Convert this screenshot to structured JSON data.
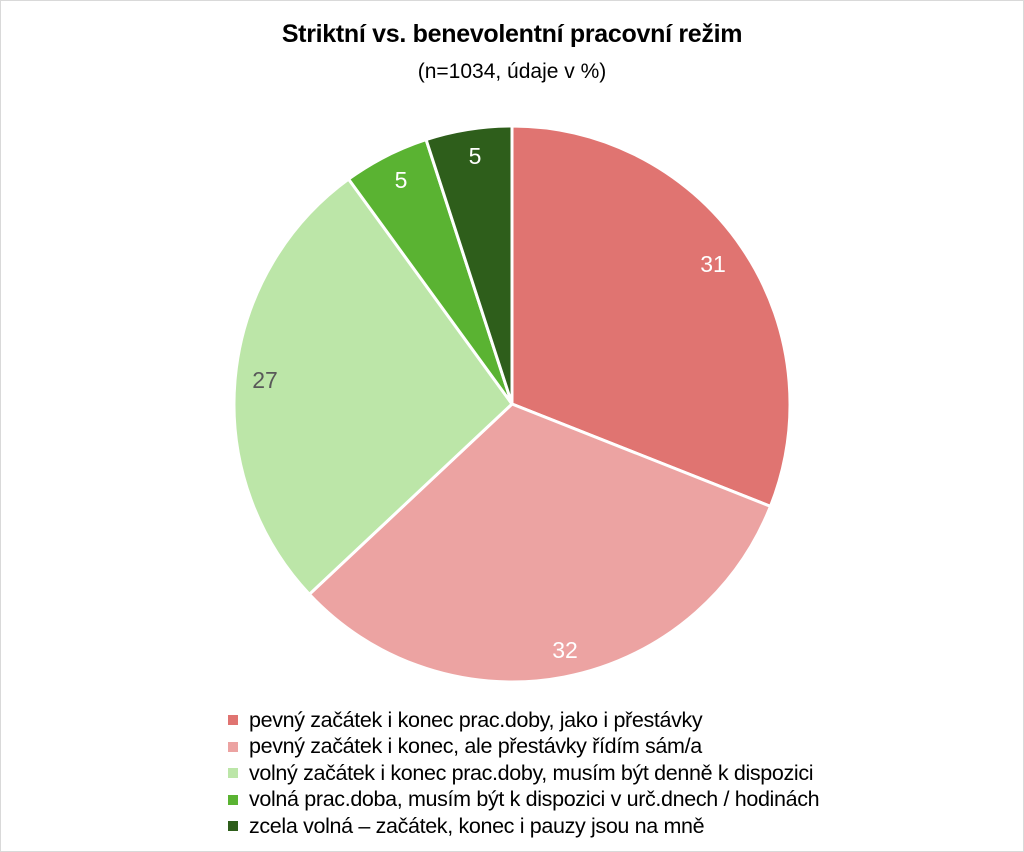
{
  "chart_data": {
    "type": "pie",
    "title": "Striktní vs. benevolentní pracovní režim",
    "subtitle": "(n=1034, údaje v %)",
    "categories": [
      "pevný začátek i konec prac.doby, jako i přestávky",
      "pevný začátek i konec, ale přestávky řídím sám/a",
      "volný začátek i konec prac.doby, musím být denně k dispozici",
      "volná prac.doba, musím být k dispozici v urč.dnech / hodinách",
      "zcela volná – začátek, konec i pauzy jsou na mně"
    ],
    "values": [
      31,
      32,
      27,
      5,
      5
    ],
    "colors": [
      "#e07471",
      "#eca3a2",
      "#bce6a8",
      "#5ab332",
      "#2e5e1b"
    ],
    "label_colors": [
      "#ffffff",
      "#ffffff",
      "#595959",
      "#ffffff",
      "#ffffff"
    ],
    "start_angle": "12 o'clock, clockwise",
    "legend_position": "bottom",
    "xlabel": "",
    "ylabel": ""
  },
  "labels": [
    "31",
    "32",
    "27",
    "5",
    "5"
  ]
}
